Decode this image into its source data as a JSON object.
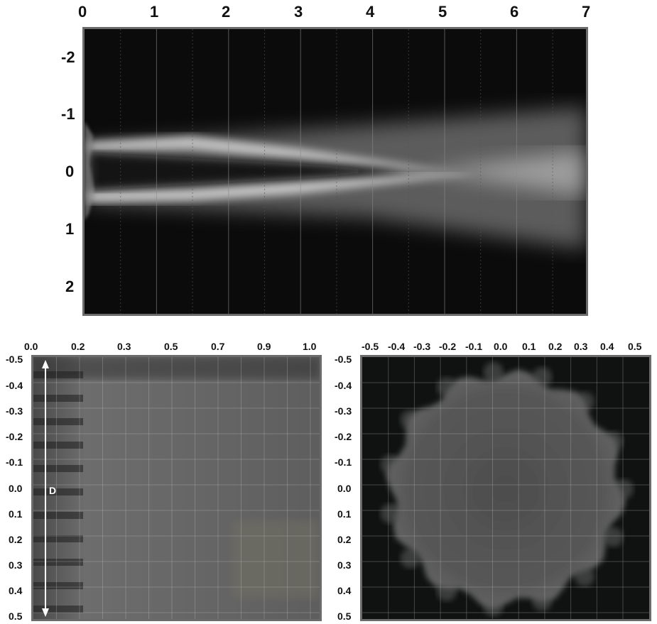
{
  "panels": {
    "top": {
      "x_ticks": [
        "0",
        "1",
        "2",
        "3",
        "4",
        "5",
        "6",
        "7"
      ],
      "y_ticks": [
        "-2",
        "-1",
        "0",
        "1",
        "2"
      ]
    },
    "bottom_left": {
      "x_ticks": [
        "0.0",
        "0.2",
        "0.3",
        "0.5",
        "0.7",
        "0.9",
        "1.0"
      ],
      "y_ticks": [
        "-0.5",
        "-0.4",
        "-0.3",
        "-0.2",
        "-0.1",
        "0.0",
        "0.1",
        "0.2",
        "0.3",
        "0.4",
        "0.5"
      ],
      "annotation": "D"
    },
    "bottom_right": {
      "x_ticks": [
        "-0.5",
        "-0.4",
        "-0.3",
        "-0.2",
        "-0.1",
        "0.0",
        "0.1",
        "0.2",
        "0.3",
        "0.4",
        "0.5"
      ],
      "y_ticks": [
        "-0.5",
        "-0.4",
        "-0.3",
        "-0.2",
        "-0.1",
        "0.0",
        "0.1",
        "0.2",
        "0.3",
        "0.4",
        "0.5"
      ]
    }
  }
}
